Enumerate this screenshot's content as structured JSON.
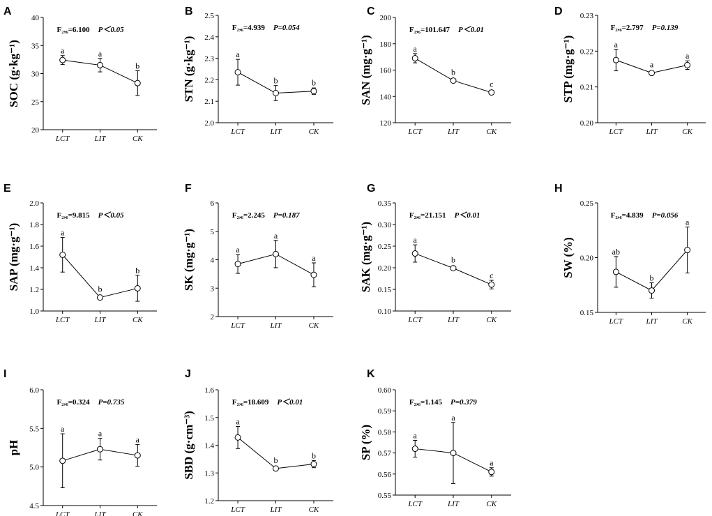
{
  "chart_data": [
    {
      "id": "A",
      "type": "line",
      "ylabel": "SOC (g·kg⁻¹)",
      "ylim": [
        20,
        40
      ],
      "yticks": [
        "20",
        "25",
        "30",
        "35",
        "40"
      ],
      "categories": [
        "LCT",
        "LIT",
        "CK"
      ],
      "values": [
        32.4,
        31.5,
        28.3
      ],
      "errors": [
        0.8,
        1.2,
        2.2
      ],
      "letters": [
        "a",
        "a",
        "b"
      ],
      "stat": "F₂,₆=6.100",
      "pval": "P＜0.05"
    },
    {
      "id": "B",
      "type": "line",
      "ylabel": "STN (g·kg⁻¹)",
      "ylim": [
        2.0,
        2.5
      ],
      "yticks": [
        "2.0",
        "2.1",
        "2.2",
        "2.3",
        "2.4",
        "2.5"
      ],
      "categories": [
        "LCT",
        "LIT",
        "CK"
      ],
      "values": [
        2.235,
        2.138,
        2.147
      ],
      "errors": [
        0.06,
        0.035,
        0.015
      ],
      "letters": [
        "a",
        "b",
        "b"
      ],
      "stat": "F₂,₆=4.939",
      "pval": "P=0.054"
    },
    {
      "id": "C",
      "type": "line",
      "ylabel": "SAN (mg·g⁻¹)",
      "ylim": [
        120,
        200
      ],
      "yticks": [
        "120",
        "140",
        "160",
        "180",
        "200"
      ],
      "categories": [
        "LCT",
        "LIT",
        "CK"
      ],
      "values": [
        169,
        152,
        143
      ],
      "errors": [
        3.5,
        1.2,
        1.2
      ],
      "letters": [
        "a",
        "b",
        "c"
      ],
      "stat": "F₂,₆=101.647",
      "pval": "P＜0.01"
    },
    {
      "id": "D",
      "type": "line",
      "ylabel": "STP (mg·g⁻¹)",
      "ylim": [
        0.2,
        0.23
      ],
      "yticks": [
        "0.20",
        "0.21",
        "0.22",
        "0.23"
      ],
      "categories": [
        "LCT",
        "LIT",
        "CK"
      ],
      "values": [
        0.2175,
        0.2139,
        0.2161
      ],
      "errors": [
        0.003,
        0.0004,
        0.0012
      ],
      "letters": [
        "a",
        "a",
        "a"
      ],
      "stat": "F₂,₆=2.797",
      "pval": "P=0.139"
    },
    {
      "id": "E",
      "type": "line",
      "ylabel": "SAP (mg·g⁻¹)",
      "ylim": [
        1.0,
        2.0
      ],
      "yticks": [
        "1.0",
        "1.2",
        "1.4",
        "1.6",
        "1.8",
        "2.0"
      ],
      "categories": [
        "LCT",
        "LIT",
        "CK"
      ],
      "values": [
        1.52,
        1.125,
        1.21
      ],
      "errors": [
        0.16,
        0.01,
        0.12
      ],
      "letters": [
        "a",
        "b",
        "b"
      ],
      "stat": "F₂,₆=9.815",
      "pval": "P＜0.05"
    },
    {
      "id": "F",
      "type": "line",
      "ylabel": "SK (mg·g⁻¹)",
      "ylim": [
        2,
        6
      ],
      "yticks": [
        "2",
        "3",
        "4",
        "5",
        "6"
      ],
      "categories": [
        "LCT",
        "LIT",
        "CK"
      ],
      "values": [
        3.85,
        4.2,
        3.47
      ],
      "errors": [
        0.33,
        0.48,
        0.42
      ],
      "letters": [
        "a",
        "a",
        "a"
      ],
      "stat": "F₂,₆=2.245",
      "pval": "P=0.187"
    },
    {
      "id": "G",
      "type": "line",
      "ylabel": "SAK (mg·g⁻¹)",
      "ylim": [
        0.1,
        0.35
      ],
      "yticks": [
        "0.10",
        "0.15",
        "0.20",
        "0.25",
        "0.30",
        "0.35"
      ],
      "categories": [
        "LCT",
        "LIT",
        "CK"
      ],
      "values": [
        0.233,
        0.199,
        0.161
      ],
      "errors": [
        0.02,
        0.003,
        0.01
      ],
      "letters": [
        "a",
        "b",
        "c"
      ],
      "stat": "F₂,₆=21.151",
      "pval": "P＜0.01"
    },
    {
      "id": "H",
      "type": "line",
      "ylabel": "SW (%)",
      "ylim": [
        0.15,
        0.25
      ],
      "yticks": [
        "0.15",
        "0.20",
        "0.25"
      ],
      "categories": [
        "LCT",
        "LIT",
        "CK"
      ],
      "values": [
        0.187,
        0.17,
        0.207
      ],
      "errors": [
        0.014,
        0.007,
        0.021
      ],
      "letters": [
        "ab",
        "b",
        "a"
      ],
      "stat": "F₂,₆=4.839",
      "pval": "P=0.056"
    },
    {
      "id": "I",
      "type": "line",
      "ylabel": "pH",
      "ylim": [
        4.5,
        6.0
      ],
      "yticks": [
        "4.5",
        "5.0",
        "5.5",
        "6.0"
      ],
      "categories": [
        "LCT",
        "LIT",
        "CK"
      ],
      "values": [
        5.08,
        5.23,
        5.15
      ],
      "errors": [
        0.35,
        0.14,
        0.14
      ],
      "letters": [
        "a",
        "a",
        "a"
      ],
      "stat": "F₂,₆=0.324",
      "pval": "P=0.735"
    },
    {
      "id": "J",
      "type": "line",
      "ylabel": "SBD (g·cm⁻³)",
      "ylim": [
        1.2,
        1.6
      ],
      "yticks": [
        "1.2",
        "1.3",
        "1.4",
        "1.5",
        "1.6"
      ],
      "categories": [
        "LCT",
        "LIT",
        "CK"
      ],
      "values": [
        1.428,
        1.316,
        1.332
      ],
      "errors": [
        0.04,
        0.004,
        0.013
      ],
      "letters": [
        "a",
        "b",
        "b"
      ],
      "stat": "F₂,₆=18.609",
      "pval": "P＜0.01"
    },
    {
      "id": "K",
      "type": "line",
      "ylabel": "SP (%)",
      "ylim": [
        0.55,
        0.6
      ],
      "yticks": [
        "0.55",
        "0.56",
        "0.57",
        "0.58",
        "0.59",
        "0.60"
      ],
      "categories": [
        "LCT",
        "LIT",
        "CK"
      ],
      "values": [
        0.572,
        0.57,
        0.561
      ],
      "errors": [
        0.004,
        0.0145,
        0.002
      ],
      "letters": [
        "a",
        "a",
        "a"
      ],
      "stat": "F₂,₆=1.145",
      "pval": "P=0.379"
    }
  ]
}
